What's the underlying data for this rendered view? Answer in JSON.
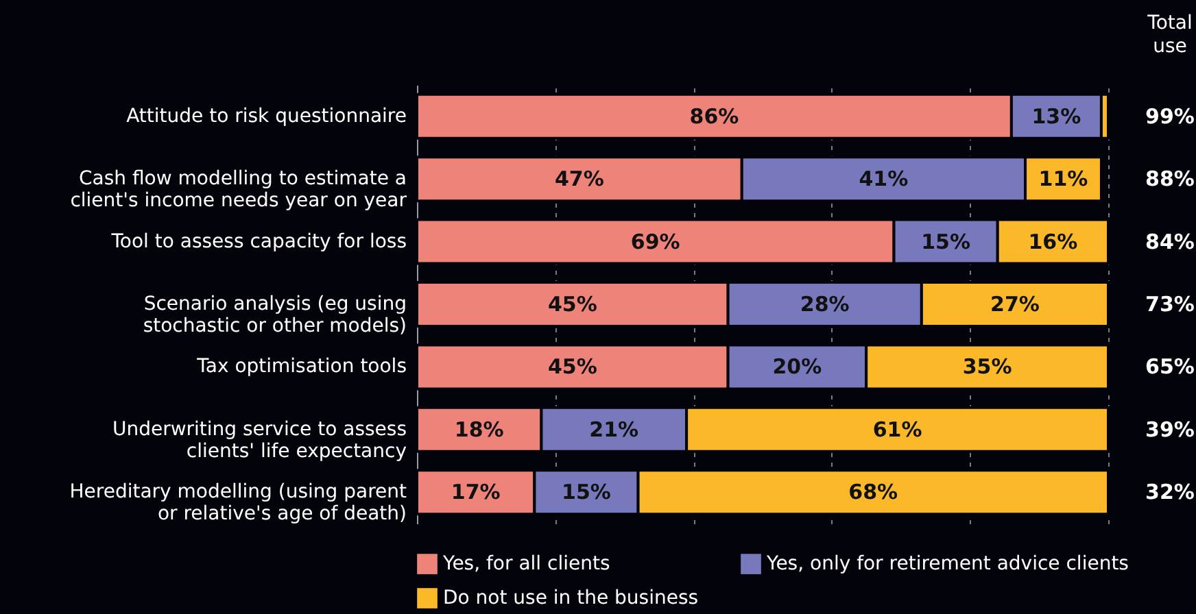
{
  "chart_data": {
    "type": "bar",
    "orientation": "horizontal",
    "stacked": true,
    "categories": [
      "Attitude to risk questionnaire",
      "Cash flow modelling to estimate a client's income needs year on year",
      "Tool to assess capacity for loss",
      "Scenario analysis (eg using stochastic or other models)",
      "Tax optimisation tools",
      "Underwriting service to assess clients' life expectancy",
      "Hereditary modelling (using parent or relative's age of death)"
    ],
    "series": [
      {
        "name": "Yes, for all clients",
        "color": "#ee8479",
        "values": [
          86,
          47,
          69,
          45,
          45,
          18,
          17
        ],
        "value_labels": [
          "86%",
          "47%",
          "69%",
          "45%",
          "45%",
          "18%",
          "17%"
        ]
      },
      {
        "name": "Yes, only for retirement advice clients",
        "color": "#7878bc",
        "values": [
          13,
          41,
          15,
          28,
          20,
          21,
          15
        ],
        "value_labels": [
          "13%",
          "41%",
          "15%",
          "28%",
          "20%",
          "21%",
          "15%"
        ]
      },
      {
        "name": "Do not use in the business",
        "color": "#fbb829",
        "values": [
          1,
          11,
          16,
          27,
          35,
          61,
          68
        ],
        "value_labels": [
          null,
          "11%",
          "16%",
          "27%",
          "35%",
          "61%",
          "68%"
        ]
      }
    ],
    "annotations": [
      "Total use",
      "99%",
      "88%",
      "84%",
      "73%",
      "65%",
      "39%",
      "32%"
    ],
    "xlim": [
      0,
      100
    ],
    "xticks": [
      {
        "value": 0,
        "label": null
      },
      {
        "value": 20,
        "label": null
      },
      {
        "value": 40,
        "label": null
      },
      {
        "value": 60,
        "label": null
      },
      {
        "value": 80,
        "label": null
      },
      {
        "value": 100,
        "label": null
      }
    ],
    "grid": "x",
    "tick_labels": "y",
    "legend": "bottom"
  }
}
